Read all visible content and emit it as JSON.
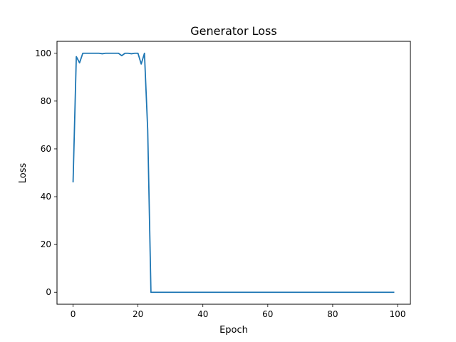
{
  "chart_data": {
    "type": "line",
    "title": "Generator Loss",
    "xlabel": "Epoch",
    "ylabel": "Loss",
    "xlim": [
      -4.95,
      103.95
    ],
    "ylim": [
      -5.0,
      105.0
    ],
    "xticks": [
      0,
      20,
      40,
      60,
      80,
      100
    ],
    "yticks": [
      0,
      20,
      40,
      60,
      80,
      100
    ],
    "grid": false,
    "legend": "none",
    "series": [
      {
        "color": "#1f77b4",
        "x": [
          0,
          1,
          2,
          3,
          4,
          5,
          6,
          7,
          8,
          9,
          10,
          11,
          12,
          13,
          14,
          15,
          16,
          17,
          18,
          19,
          20,
          21,
          22,
          23,
          24,
          25,
          26,
          27,
          28,
          29,
          30,
          31,
          32,
          33,
          34,
          35,
          36,
          37,
          38,
          39,
          40,
          41,
          42,
          43,
          44,
          45,
          46,
          47,
          48,
          49,
          50,
          51,
          52,
          53,
          54,
          55,
          56,
          57,
          58,
          59,
          60,
          61,
          62,
          63,
          64,
          65,
          66,
          67,
          68,
          69,
          70,
          71,
          72,
          73,
          74,
          75,
          76,
          77,
          78,
          79,
          80,
          81,
          82,
          83,
          84,
          85,
          86,
          87,
          88,
          89,
          90,
          91,
          92,
          93,
          94,
          95,
          96,
          97,
          98,
          99
        ],
        "values": [
          46,
          98.6,
          96,
          100,
          100,
          100,
          100,
          100,
          100,
          99.8,
          100,
          100,
          100,
          100,
          100,
          99,
          100,
          100,
          99.8,
          100,
          100,
          95.5,
          100,
          68,
          0,
          0,
          0,
          0,
          0,
          0,
          0,
          0,
          0,
          0,
          0,
          0,
          0,
          0,
          0,
          0,
          0,
          0,
          0,
          0,
          0,
          0,
          0,
          0,
          0,
          0,
          0,
          0,
          0,
          0,
          0,
          0,
          0,
          0,
          0,
          0,
          0,
          0,
          0,
          0,
          0,
          0,
          0,
          0,
          0,
          0,
          0,
          0,
          0,
          0,
          0,
          0,
          0,
          0,
          0,
          0,
          0,
          0,
          0,
          0,
          0,
          0,
          0,
          0,
          0,
          0,
          0,
          0,
          0,
          0,
          0,
          0,
          0,
          0,
          0,
          0
        ]
      }
    ]
  }
}
